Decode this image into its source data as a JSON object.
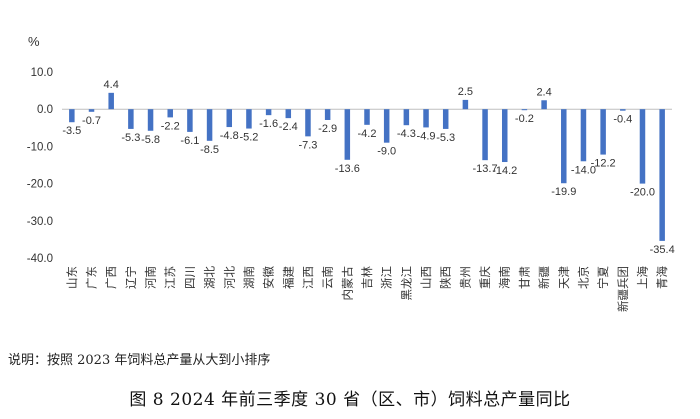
{
  "chart_data": {
    "type": "bar",
    "ylabel": "%",
    "ylim": [
      -40,
      10
    ],
    "yticks": [
      10,
      0,
      -10,
      -20,
      -30,
      -40
    ],
    "ytick_labels": [
      "10.0",
      "0.0",
      "-10.0",
      "-20.0",
      "-30.0",
      "-40.0"
    ],
    "grid": false,
    "bar_color": "#4472C4",
    "categories": [
      "山东",
      "广东",
      "广西",
      "辽宁",
      "河南",
      "江苏",
      "四川",
      "湖北",
      "河北",
      "湖南",
      "安徽",
      "福建",
      "江西",
      "云南",
      "内蒙古",
      "吉林",
      "浙江",
      "黑龙江",
      "山西",
      "陕西",
      "贵州",
      "重庆",
      "海南",
      "甘肃",
      "新疆",
      "天津",
      "北京",
      "宁夏",
      "新疆兵团",
      "上海",
      "青海"
    ],
    "values": [
      -3.5,
      -0.7,
      4.4,
      -5.3,
      -5.8,
      -2.2,
      -6.1,
      -8.5,
      -4.8,
      -5.2,
      -1.6,
      -2.4,
      -7.3,
      -2.9,
      -13.6,
      -4.2,
      -9.0,
      -4.3,
      -4.9,
      -5.3,
      2.5,
      -13.7,
      -14.2,
      -0.2,
      2.4,
      -19.9,
      -14.0,
      -12.2,
      -0.4,
      -20.0,
      -35.4
    ],
    "value_labels": [
      "-3.5",
      "-0.7",
      "4.4",
      "-5.3",
      "-5.8",
      "-2.2",
      "-6.1",
      "-8.5",
      "-4.8",
      "-5.2",
      "-1.6",
      "-2.4",
      "-7.3",
      "-2.9",
      "-13.6",
      "-4.2",
      "-9.0",
      "-4.3",
      "-4.9",
      "-5.3",
      "2.5",
      "-13.7",
      "-14.2",
      "-0.2",
      "2.4",
      "-19.9",
      "-14.0",
      "-12.2",
      "-0.4",
      "-20.0",
      "-35.4"
    ]
  },
  "note": "说明：按照 2023 年饲料总产量从大到小排序",
  "caption": "图 8  2024 年前三季度 30 省（区、市）饲料总产量同比"
}
